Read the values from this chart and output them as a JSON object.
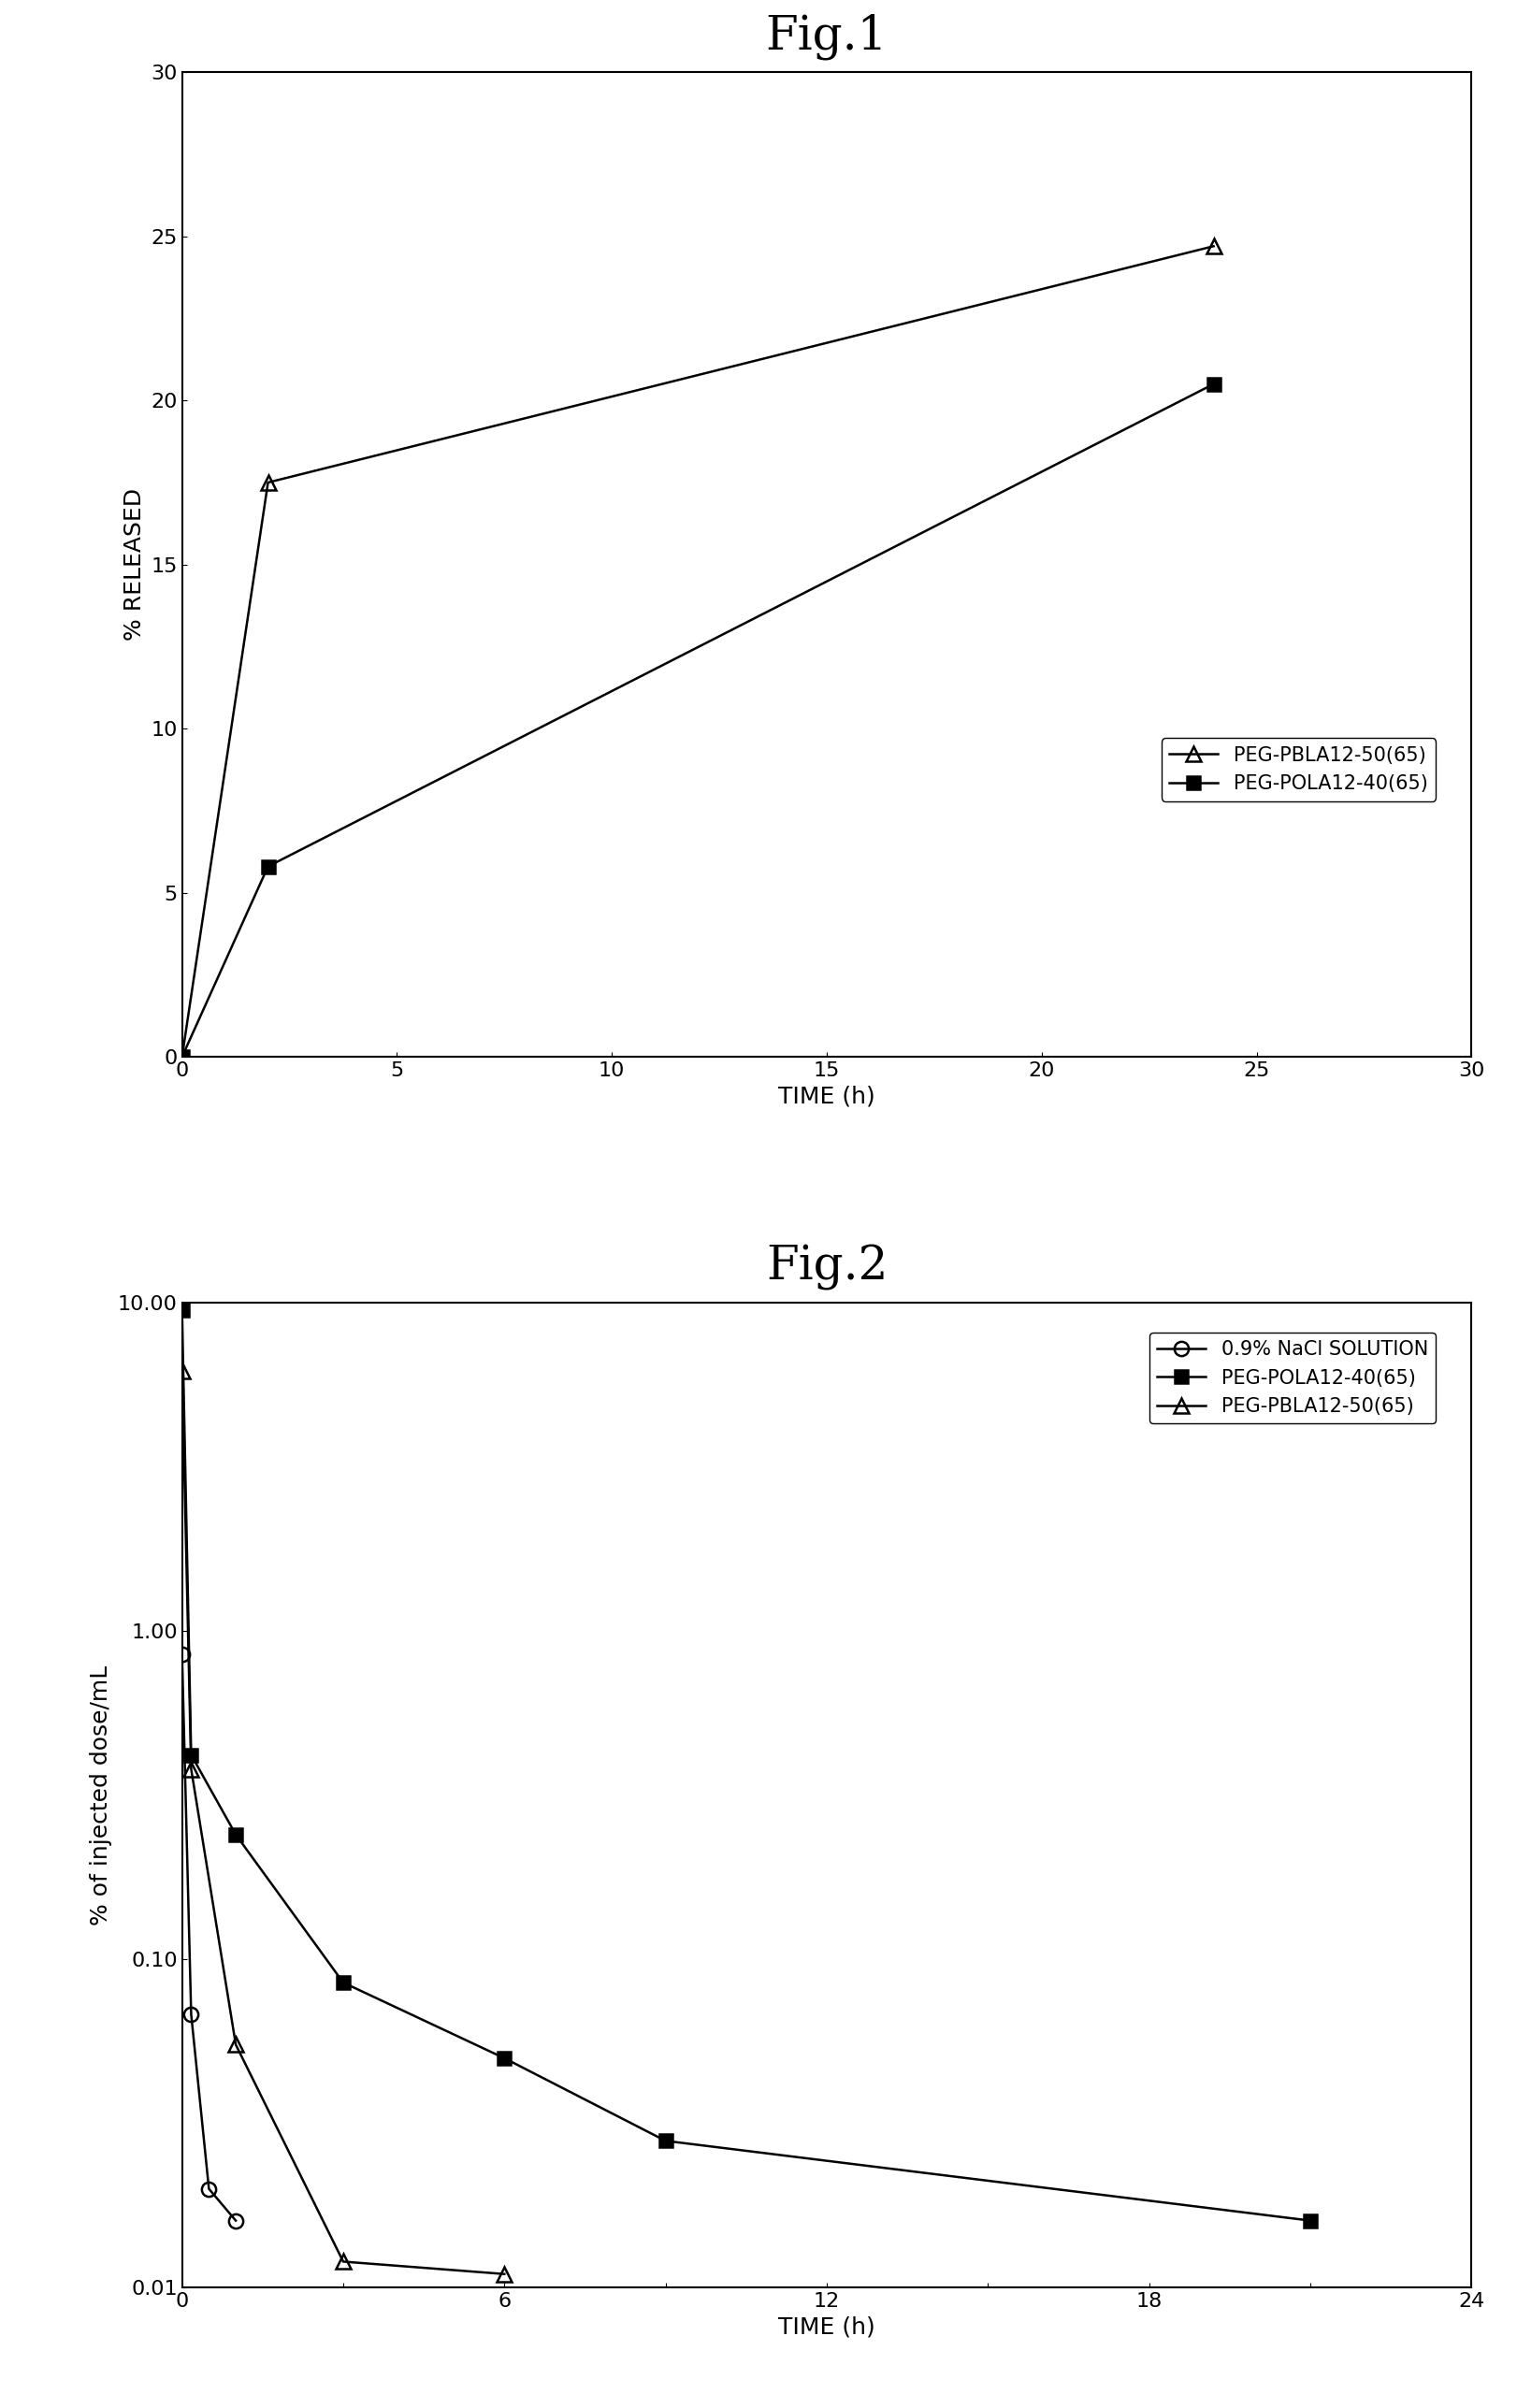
{
  "fig1": {
    "title": "Fig.1",
    "xlabel": "TIME (h)",
    "ylabel": "% RELEASED",
    "xlim": [
      0,
      30
    ],
    "ylim": [
      0,
      30
    ],
    "xticks": [
      0,
      5,
      10,
      15,
      20,
      25,
      30
    ],
    "yticks": [
      0,
      5,
      10,
      15,
      20,
      25,
      30
    ],
    "series": [
      {
        "label": "PEG-PBLA12-50(65)",
        "x": [
          0,
          2,
          24
        ],
        "y": [
          0,
          17.5,
          24.7
        ],
        "marker": "^",
        "fillstyle": "none",
        "color": "#000000",
        "linewidth": 1.8,
        "markersize": 11
      },
      {
        "label": "PEG-POLA12-40(65)",
        "x": [
          0,
          2,
          24
        ],
        "y": [
          0,
          5.8,
          20.5
        ],
        "marker": "s",
        "fillstyle": "full",
        "color": "#000000",
        "linewidth": 1.8,
        "markersize": 10
      }
    ]
  },
  "fig2": {
    "title": "Fig.2",
    "xlabel": "TIME (h)",
    "ylabel": "% of injected dose/mL",
    "xlim": [
      0,
      24
    ],
    "ylim_log": [
      0.01,
      10.0
    ],
    "xticks": [
      0,
      3,
      6,
      9,
      12,
      15,
      18,
      21,
      24
    ],
    "xtick_labels": [
      "0",
      "",
      "6",
      "",
      "12",
      "",
      "18",
      "",
      "24"
    ],
    "series": [
      {
        "label": "0.9% NaCl SOLUTION",
        "x": [
          0,
          0.17,
          0.5,
          1.0
        ],
        "y": [
          0.85,
          0.068,
          0.02,
          0.016
        ],
        "marker": "o",
        "fillstyle": "none",
        "color": "#000000",
        "linewidth": 1.8,
        "markersize": 11
      },
      {
        "label": "PEG-POLA12-40(65)",
        "x": [
          0,
          0.17,
          1.0,
          3.0,
          6.0,
          9.0,
          21.0
        ],
        "y": [
          9.5,
          0.42,
          0.24,
          0.085,
          0.05,
          0.028,
          0.016
        ],
        "marker": "s",
        "fillstyle": "full",
        "color": "#000000",
        "linewidth": 1.8,
        "markersize": 10
      },
      {
        "label": "PEG-PBLA12-50(65)",
        "x": [
          0,
          0.17,
          1.0,
          3.0,
          6.0
        ],
        "y": [
          6.2,
          0.38,
          0.055,
          0.012,
          0.011
        ],
        "marker": "^",
        "fillstyle": "none",
        "color": "#000000",
        "linewidth": 1.8,
        "markersize": 11
      }
    ]
  },
  "background_color": "#ffffff",
  "title_fontsize": 36,
  "label_fontsize": 18,
  "tick_fontsize": 16,
  "legend_fontsize": 15
}
